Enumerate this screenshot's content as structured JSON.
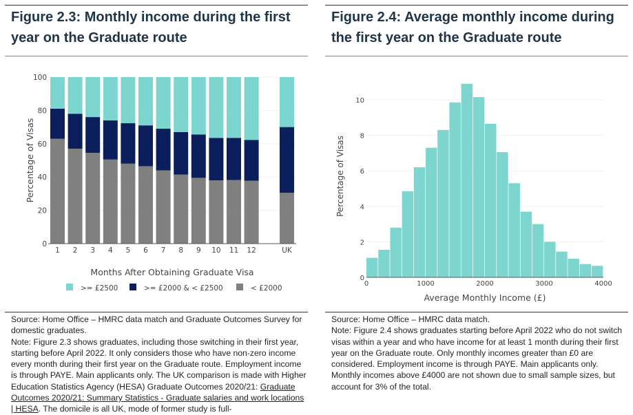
{
  "colors": {
    "high": "#7dd5cf",
    "mid": "#0b1f5c",
    "low": "#808080",
    "title": "#1f3447"
  },
  "left": {
    "title": "Figure 2.3: Monthly income during the first year on the Graduate route",
    "source": "Source: Home Office – HMRC data match and Graduate Outcomes Survey for domestic graduates.",
    "note_pre": "Note: Figure 2.3 shows graduates, including those switching in their first year, starting before April 2022. It only considers those who have non-zero income every month during their first year on the Graduate route. Employment income is through PAYE. Main applicants only. The UK comparison is made with Higher Education Statistics Agency (HESA) Graduate Outcomes 2020/21: ",
    "note_link": "Graduate Outcomes 2020/21: Summary Statistics - Graduate salaries and work locations | HESA",
    "note_post": ". The domicile is all UK, mode of former study is full-"
  },
  "right": {
    "title": "Figure 2.4: Average monthly income during the first year on the Graduate route",
    "source": "Source: Home Office – HMRC data match.",
    "note": "Note: Figure 2.4 shows graduates starting before April 2022 who do not switch visas within a year and who have income for at least 1 month during their first year on the Graduate route. Only monthly incomes greater than £0 are considered. Employment income is through PAYE. Main applicants only. Monthly incomes above £4000 are not shown due to small sample sizes, but account for 3% of the total."
  },
  "chart_data": [
    {
      "type": "bar",
      "stacked": true,
      "categories": [
        "1",
        "2",
        "3",
        "4",
        "5",
        "6",
        "7",
        "8",
        "9",
        "10",
        "11",
        "12",
        "UK"
      ],
      "xlabel": "Months After Obtaining Graduate Visa",
      "ylabel": "Percentage of Visas",
      "ylim": [
        0,
        100
      ],
      "yticks": [
        0,
        20,
        40,
        60,
        80,
        100
      ],
      "legend_position": "bottom",
      "series": [
        {
          "name": "< £2000",
          "color": "#808080",
          "values": [
            63,
            57,
            54.5,
            50.5,
            48,
            46.5,
            44,
            41.5,
            39.5,
            38,
            38.2,
            37.8,
            30.5
          ]
        },
        {
          "name": ">= £2000 & < £2500",
          "color": "#0b1f5c",
          "values": [
            18,
            21,
            21.5,
            23.5,
            24.3,
            24.5,
            25,
            25.5,
            26,
            25.5,
            25.3,
            24.5,
            39.5
          ]
        },
        {
          "name": ">= £2500",
          "color": "#7dd5cf",
          "values": [
            19,
            22,
            24,
            26,
            27.7,
            29,
            31,
            33,
            34.5,
            36.5,
            36.5,
            37.7,
            30
          ]
        }
      ],
      "legend_order": [
        ">= £2500",
        ">= £2000 & < £2500",
        "< £2000"
      ]
    },
    {
      "type": "bar",
      "histogram": true,
      "bin_width": 200,
      "bin_starts": [
        0,
        200,
        400,
        600,
        800,
        1000,
        1200,
        1400,
        1600,
        1800,
        2000,
        2200,
        2400,
        2600,
        2800,
        3000,
        3200,
        3400,
        3600,
        3800
      ],
      "values": [
        1.1,
        1.55,
        2.8,
        4.85,
        6.2,
        7.3,
        8.3,
        9.85,
        10.9,
        10.15,
        8.65,
        7.05,
        5.3,
        3.7,
        3.0,
        2.0,
        1.45,
        1.05,
        0.75,
        0.65
      ],
      "xlabel": "Average Monthly Income (£)",
      "ylabel": "Percentage of Visas",
      "xlim": [
        0,
        4000
      ],
      "xticks": [
        0,
        1000,
        2000,
        3000,
        4000
      ],
      "yticks": [
        0,
        2,
        4,
        6,
        8,
        10
      ],
      "ylim": [
        0,
        11
      ]
    }
  ]
}
